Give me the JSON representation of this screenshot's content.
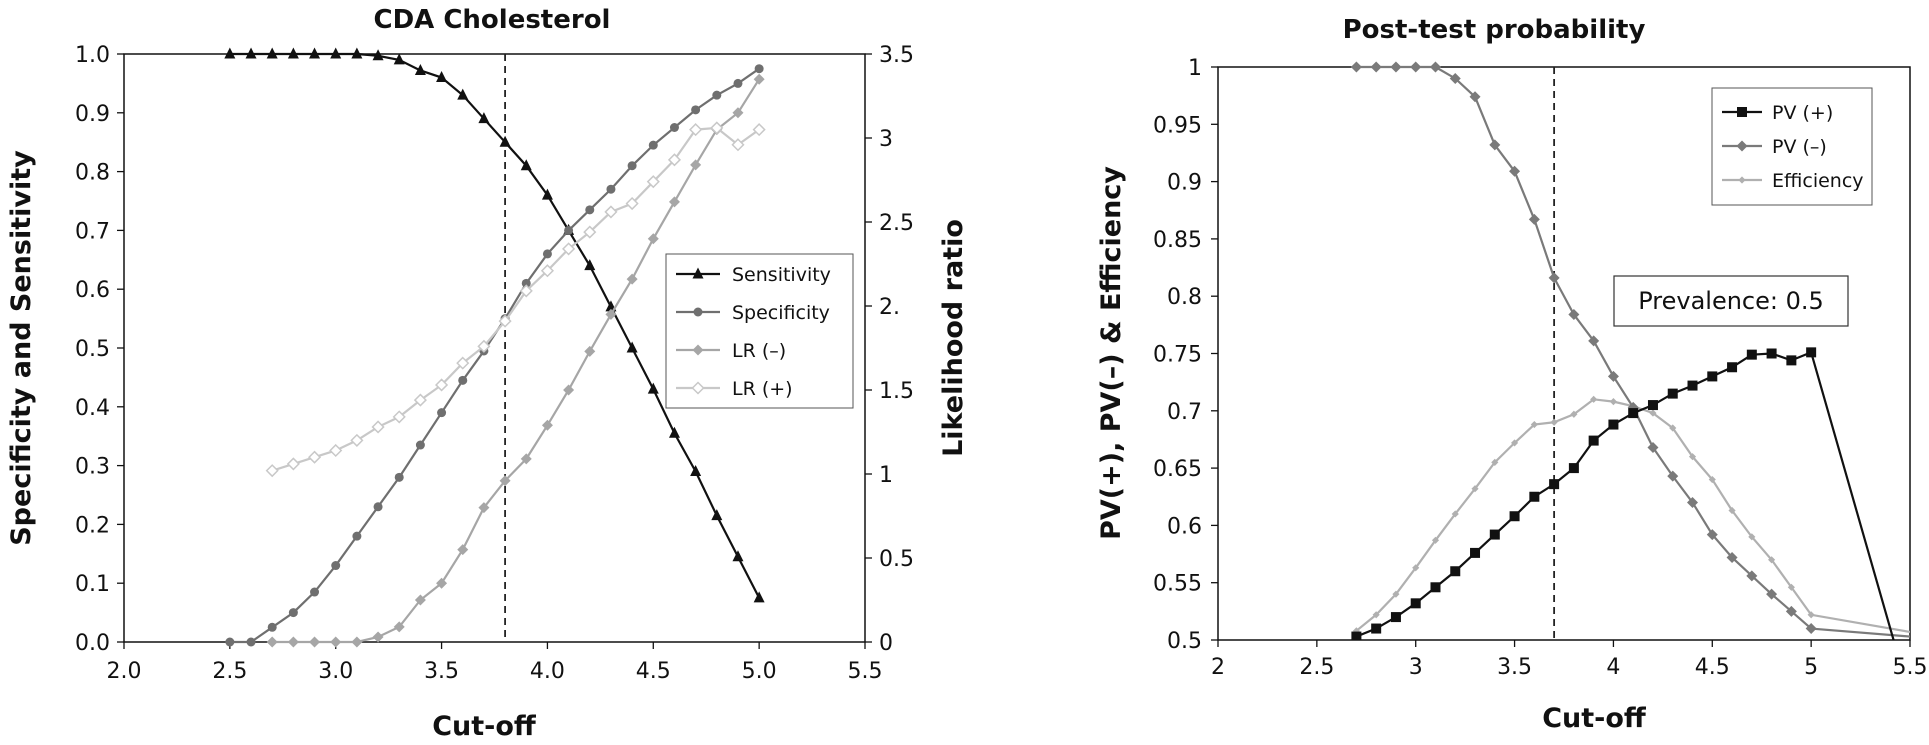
{
  "chart_data": [
    {
      "type": "line",
      "title": "CDA Cholesterol",
      "xlabel": "Cut-off",
      "ylabel": "Specificity and Sensitivity",
      "y2label": "Likelihood ratio",
      "xlim": [
        2.0,
        5.5
      ],
      "ylim": [
        0.0,
        1.0
      ],
      "y2lim": [
        0,
        3.5
      ],
      "xticks": [
        "2.0",
        "2.5",
        "3.0",
        "3.5",
        "4.0",
        "4.5",
        "5.0",
        "5.5"
      ],
      "yticks": [
        "0.0",
        "0.1",
        "0.2",
        "0.3",
        "0.4",
        "0.5",
        "0.6",
        "0.7",
        "0.8",
        "0.9",
        "1.0"
      ],
      "y2ticks": [
        "0",
        "0.5",
        "1",
        "1.5",
        "2.",
        "2.5",
        "3",
        "3.5"
      ],
      "grid": false,
      "legend_position": "right-middle",
      "cutoff_line": 3.8,
      "series": [
        {
          "name": "Sensitivity",
          "axis": "left",
          "color": "#111111",
          "marker": "triangle",
          "x": [
            2.5,
            2.6,
            2.7,
            2.8,
            2.9,
            3.0,
            3.1,
            3.2,
            3.3,
            3.4,
            3.5,
            3.6,
            3.7,
            3.8,
            3.9,
            4.0,
            4.1,
            4.2,
            4.3,
            4.4,
            4.5,
            4.6,
            4.7,
            4.8,
            4.9,
            5.0
          ],
          "y": [
            1.0,
            1.0,
            1.0,
            1.0,
            1.0,
            1.0,
            1.0,
            0.997,
            0.99,
            0.972,
            0.96,
            0.93,
            0.89,
            0.85,
            0.81,
            0.76,
            0.7,
            0.64,
            0.57,
            0.5,
            0.43,
            0.355,
            0.29,
            0.215,
            0.145,
            0.075
          ]
        },
        {
          "name": "Specificity",
          "axis": "left",
          "color": "#6f6f6f",
          "marker": "circle",
          "x": [
            2.5,
            2.6,
            2.7,
            2.8,
            2.9,
            3.0,
            3.1,
            3.2,
            3.3,
            3.4,
            3.5,
            3.6,
            3.7,
            3.8,
            3.9,
            4.0,
            4.1,
            4.2,
            4.3,
            4.4,
            4.5,
            4.6,
            4.7,
            4.8,
            4.9,
            5.0
          ],
          "y": [
            0.0,
            0.0,
            0.025,
            0.05,
            0.085,
            0.13,
            0.18,
            0.23,
            0.28,
            0.335,
            0.39,
            0.445,
            0.495,
            0.55,
            0.61,
            0.66,
            0.7,
            0.735,
            0.77,
            0.81,
            0.845,
            0.875,
            0.905,
            0.93,
            0.95,
            0.975
          ]
        },
        {
          "name": "LR (–)",
          "axis": "right",
          "color": "#a6a6a6",
          "marker": "diamond",
          "x": [
            2.7,
            2.8,
            2.9,
            3.0,
            3.1,
            3.2,
            3.3,
            3.4,
            3.5,
            3.6,
            3.7,
            3.8,
            3.9,
            4.0,
            4.1,
            4.2,
            4.3,
            4.4,
            4.5,
            4.6,
            4.7,
            4.8,
            4.9,
            5.0
          ],
          "y": [
            0,
            0,
            0,
            0,
            0,
            0.03,
            0.09,
            0.25,
            0.35,
            0.55,
            0.8,
            0.96,
            1.09,
            1.29,
            1.5,
            1.73,
            1.95,
            2.16,
            2.4,
            2.62,
            2.84,
            3.05,
            3.15,
            3.35
          ]
        },
        {
          "name": "LR (+)",
          "axis": "right",
          "color": "#c8c8c8",
          "marker": "diamond-open",
          "x": [
            2.7,
            2.8,
            2.9,
            3.0,
            3.1,
            3.2,
            3.3,
            3.4,
            3.5,
            3.6,
            3.7,
            3.8,
            3.9,
            4.0,
            4.1,
            4.2,
            4.3,
            4.4,
            4.5,
            4.6,
            4.7,
            4.8,
            4.9,
            5.0
          ],
          "y": [
            1.02,
            1.06,
            1.1,
            1.14,
            1.2,
            1.28,
            1.34,
            1.44,
            1.53,
            1.66,
            1.76,
            1.91,
            2.09,
            2.21,
            2.34,
            2.44,
            2.56,
            2.61,
            2.74,
            2.87,
            3.05,
            3.06,
            2.96,
            3.05
          ]
        }
      ]
    },
    {
      "type": "line",
      "title": "Post-test probability",
      "xlabel": "Cut-off",
      "ylabel": "PV(+), PV(–) & Efficiency",
      "xlim": [
        2,
        5.5
      ],
      "ylim": [
        0.5,
        1.0
      ],
      "xticks": [
        "2",
        "2.5",
        "3",
        "3.5",
        "4",
        "4.5",
        "5",
        "5.5"
      ],
      "yticks": [
        "0.5",
        "0.55",
        "0.6",
        "0.65",
        "0.7",
        "0.75",
        "0.8",
        "0.85",
        "0.9",
        "0.95",
        "1"
      ],
      "grid": false,
      "legend_position": "top-right",
      "cutoff_line": 3.7,
      "annotation": "Prevalence: 0.5",
      "series": [
        {
          "name": "PV (+)",
          "color": "#111111",
          "marker": "square",
          "x": [
            2.7,
            2.8,
            2.9,
            3.0,
            3.1,
            3.2,
            3.3,
            3.4,
            3.5,
            3.6,
            3.7,
            3.8,
            3.9,
            4.0,
            4.1,
            4.2,
            4.3,
            4.4,
            4.5,
            4.6,
            4.7,
            4.8,
            4.9,
            5.0,
            5.5
          ],
          "y": [
            0.503,
            0.51,
            0.52,
            0.532,
            0.546,
            0.56,
            0.576,
            0.592,
            0.608,
            0.625,
            0.636,
            0.65,
            0.674,
            0.688,
            0.698,
            0.705,
            0.715,
            0.722,
            0.73,
            0.738,
            0.749,
            0.75,
            0.744,
            0.751,
            0.45
          ]
        },
        {
          "name": "PV (–)",
          "color": "#7a7a7a",
          "marker": "diamond",
          "x": [
            2.7,
            2.8,
            2.9,
            3.0,
            3.1,
            3.2,
            3.3,
            3.4,
            3.5,
            3.6,
            3.7,
            3.8,
            3.9,
            4.0,
            4.1,
            4.2,
            4.3,
            4.4,
            4.5,
            4.6,
            4.7,
            4.8,
            4.9,
            5.0,
            5.5
          ],
          "y": [
            1.0,
            1.0,
            1.0,
            1.0,
            1.0,
            0.99,
            0.974,
            0.932,
            0.909,
            0.867,
            0.816,
            0.784,
            0.761,
            0.73,
            0.703,
            0.668,
            0.643,
            0.62,
            0.592,
            0.572,
            0.556,
            0.54,
            0.525,
            0.51,
            0.503
          ]
        },
        {
          "name": "Efficiency",
          "color": "#b0b0b0",
          "marker": "small-diamond",
          "x": [
            2.7,
            2.8,
            2.9,
            3.0,
            3.1,
            3.2,
            3.3,
            3.4,
            3.5,
            3.6,
            3.7,
            3.8,
            3.9,
            4.0,
            4.1,
            4.2,
            4.3,
            4.4,
            4.5,
            4.6,
            4.7,
            4.8,
            4.9,
            5.0,
            5.5
          ],
          "y": [
            0.508,
            0.522,
            0.54,
            0.563,
            0.587,
            0.61,
            0.632,
            0.655,
            0.672,
            0.688,
            0.69,
            0.697,
            0.71,
            0.708,
            0.704,
            0.698,
            0.685,
            0.66,
            0.64,
            0.613,
            0.59,
            0.57,
            0.546,
            0.522,
            0.507
          ]
        }
      ]
    }
  ]
}
